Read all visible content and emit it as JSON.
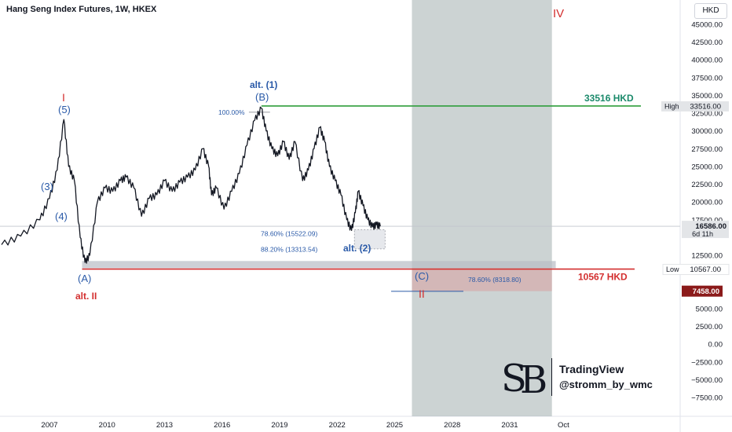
{
  "header": {
    "title": "Hang Seng Index Futures, 1W, HKEX",
    "currency_label": "HKD"
  },
  "branding": {
    "platform": "TradingView",
    "author": "@stromm_by_wmc"
  },
  "colors": {
    "red": "#d32f2f",
    "green": "#2e9e3c",
    "blue": "#2a5aa8",
    "teal": "#1b8a6b",
    "shade": "#9aa8a8"
  },
  "chart_data": {
    "type": "line",
    "title": "Hang Seng Index Futures, 1W, HKEX",
    "ylim": [
      -7500,
      47500
    ],
    "yticks": [
      45000,
      42500,
      40000,
      37500,
      35000,
      32500,
      30000,
      27500,
      25000,
      22500,
      20000,
      17500,
      12500,
      5000,
      2500,
      0,
      -2500,
      -5000,
      -7500
    ],
    "ytick_labels": [
      "45000.00",
      "42500.00",
      "40000.00",
      "37500.00",
      "35000.00",
      "32500.00",
      "30000.00",
      "27500.00",
      "25000.00",
      "22500.00",
      "20000.00",
      "17500.00",
      "12500.00",
      "5000.00",
      "2500.00",
      "0.00",
      "−2500.00",
      "−5000.00",
      "−7500.00"
    ],
    "xticks": [
      {
        "label": "2007",
        "x": 2007
      },
      {
        "label": "2010",
        "x": 2010
      },
      {
        "label": "2013",
        "x": 2013
      },
      {
        "label": "2016",
        "x": 2016
      },
      {
        "label": "2019",
        "x": 2019
      },
      {
        "label": "2022",
        "x": 2022
      },
      {
        "label": "2025",
        "x": 2025
      },
      {
        "label": "2028",
        "x": 2028
      },
      {
        "label": "2031",
        "x": 2031
      },
      {
        "label": "Oct",
        "x": 2033.8
      }
    ],
    "xlim": [
      2004.5,
      2035.5
    ],
    "series": [
      {
        "x": [
          2004.5,
          2005.5,
          2006.5,
          2007.0,
          2007.4,
          2007.75,
          2008.0,
          2008.3,
          2008.6,
          2008.85,
          2009.1,
          2009.5,
          2009.9,
          2010.3,
          2010.7,
          2011.0,
          2011.4,
          2011.8,
          2012.2,
          2012.6,
          2013.0,
          2013.4,
          2013.8,
          2014.2,
          2014.6,
          2015.0,
          2015.3,
          2015.45,
          2015.7,
          2016.1,
          2016.5,
          2016.9,
          2017.3,
          2017.7,
          2018.05,
          2018.3,
          2018.6,
          2018.9,
          2019.2,
          2019.5,
          2019.8,
          2020.2,
          2020.5,
          2020.8,
          2021.1,
          2021.35,
          2021.6,
          2021.9,
          2022.2,
          2022.5,
          2022.75,
          2022.95,
          2023.1,
          2023.35,
          2023.6,
          2023.85,
          2024.05,
          2024.25
        ],
        "values": [
          14000,
          15200,
          17500,
          20500,
          24500,
          31600,
          25000,
          23000,
          15000,
          11500,
          12500,
          20000,
          22000,
          21500,
          23000,
          23500,
          22000,
          18000,
          20500,
          21000,
          23000,
          21500,
          22800,
          23500,
          24500,
          27500,
          25000,
          21000,
          22000,
          19000,
          21500,
          24000,
          28000,
          31500,
          33200,
          30000,
          27500,
          26500,
          28500,
          26000,
          28500,
          23000,
          24500,
          27500,
          30500,
          28500,
          25000,
          23000,
          21000,
          17500,
          16000,
          18500,
          21500,
          19500,
          17500,
          16500,
          16800,
          16586
        ]
      }
    ],
    "price_tags": [
      {
        "label": "16586.00",
        "value": 16586,
        "extra": "6d 11h"
      },
      {
        "label": "33516.00",
        "value": 33516,
        "tag": "High"
      },
      {
        "label": "10567.00",
        "value": 10567,
        "tag": "Low"
      },
      {
        "label": "7458.00",
        "value": 7458
      }
    ],
    "levels": [
      {
        "label": "33516 HKD",
        "value": 33516
      },
      {
        "label": "10567 HKD",
        "value": 10567
      }
    ],
    "fibs": [
      {
        "label": "100.00%",
        "value": 33516
      },
      {
        "label": "78.60% (15522.09)",
        "value": 15522
      },
      {
        "label": "88.20% (13313.54)",
        "value": 13313
      },
      {
        "label": "78.60% (8318.80)",
        "value": 8319
      }
    ],
    "wave_labels": {
      "I": "I",
      "five": "(5)",
      "three": "(3)",
      "four": "(4)",
      "A": "(A)",
      "alt2": "alt. II",
      "alt1": "alt. (1)",
      "B": "(B)",
      "alt_2_paren": "alt. (2)",
      "C": "(C)",
      "II": "II",
      "IV": "IV"
    }
  }
}
